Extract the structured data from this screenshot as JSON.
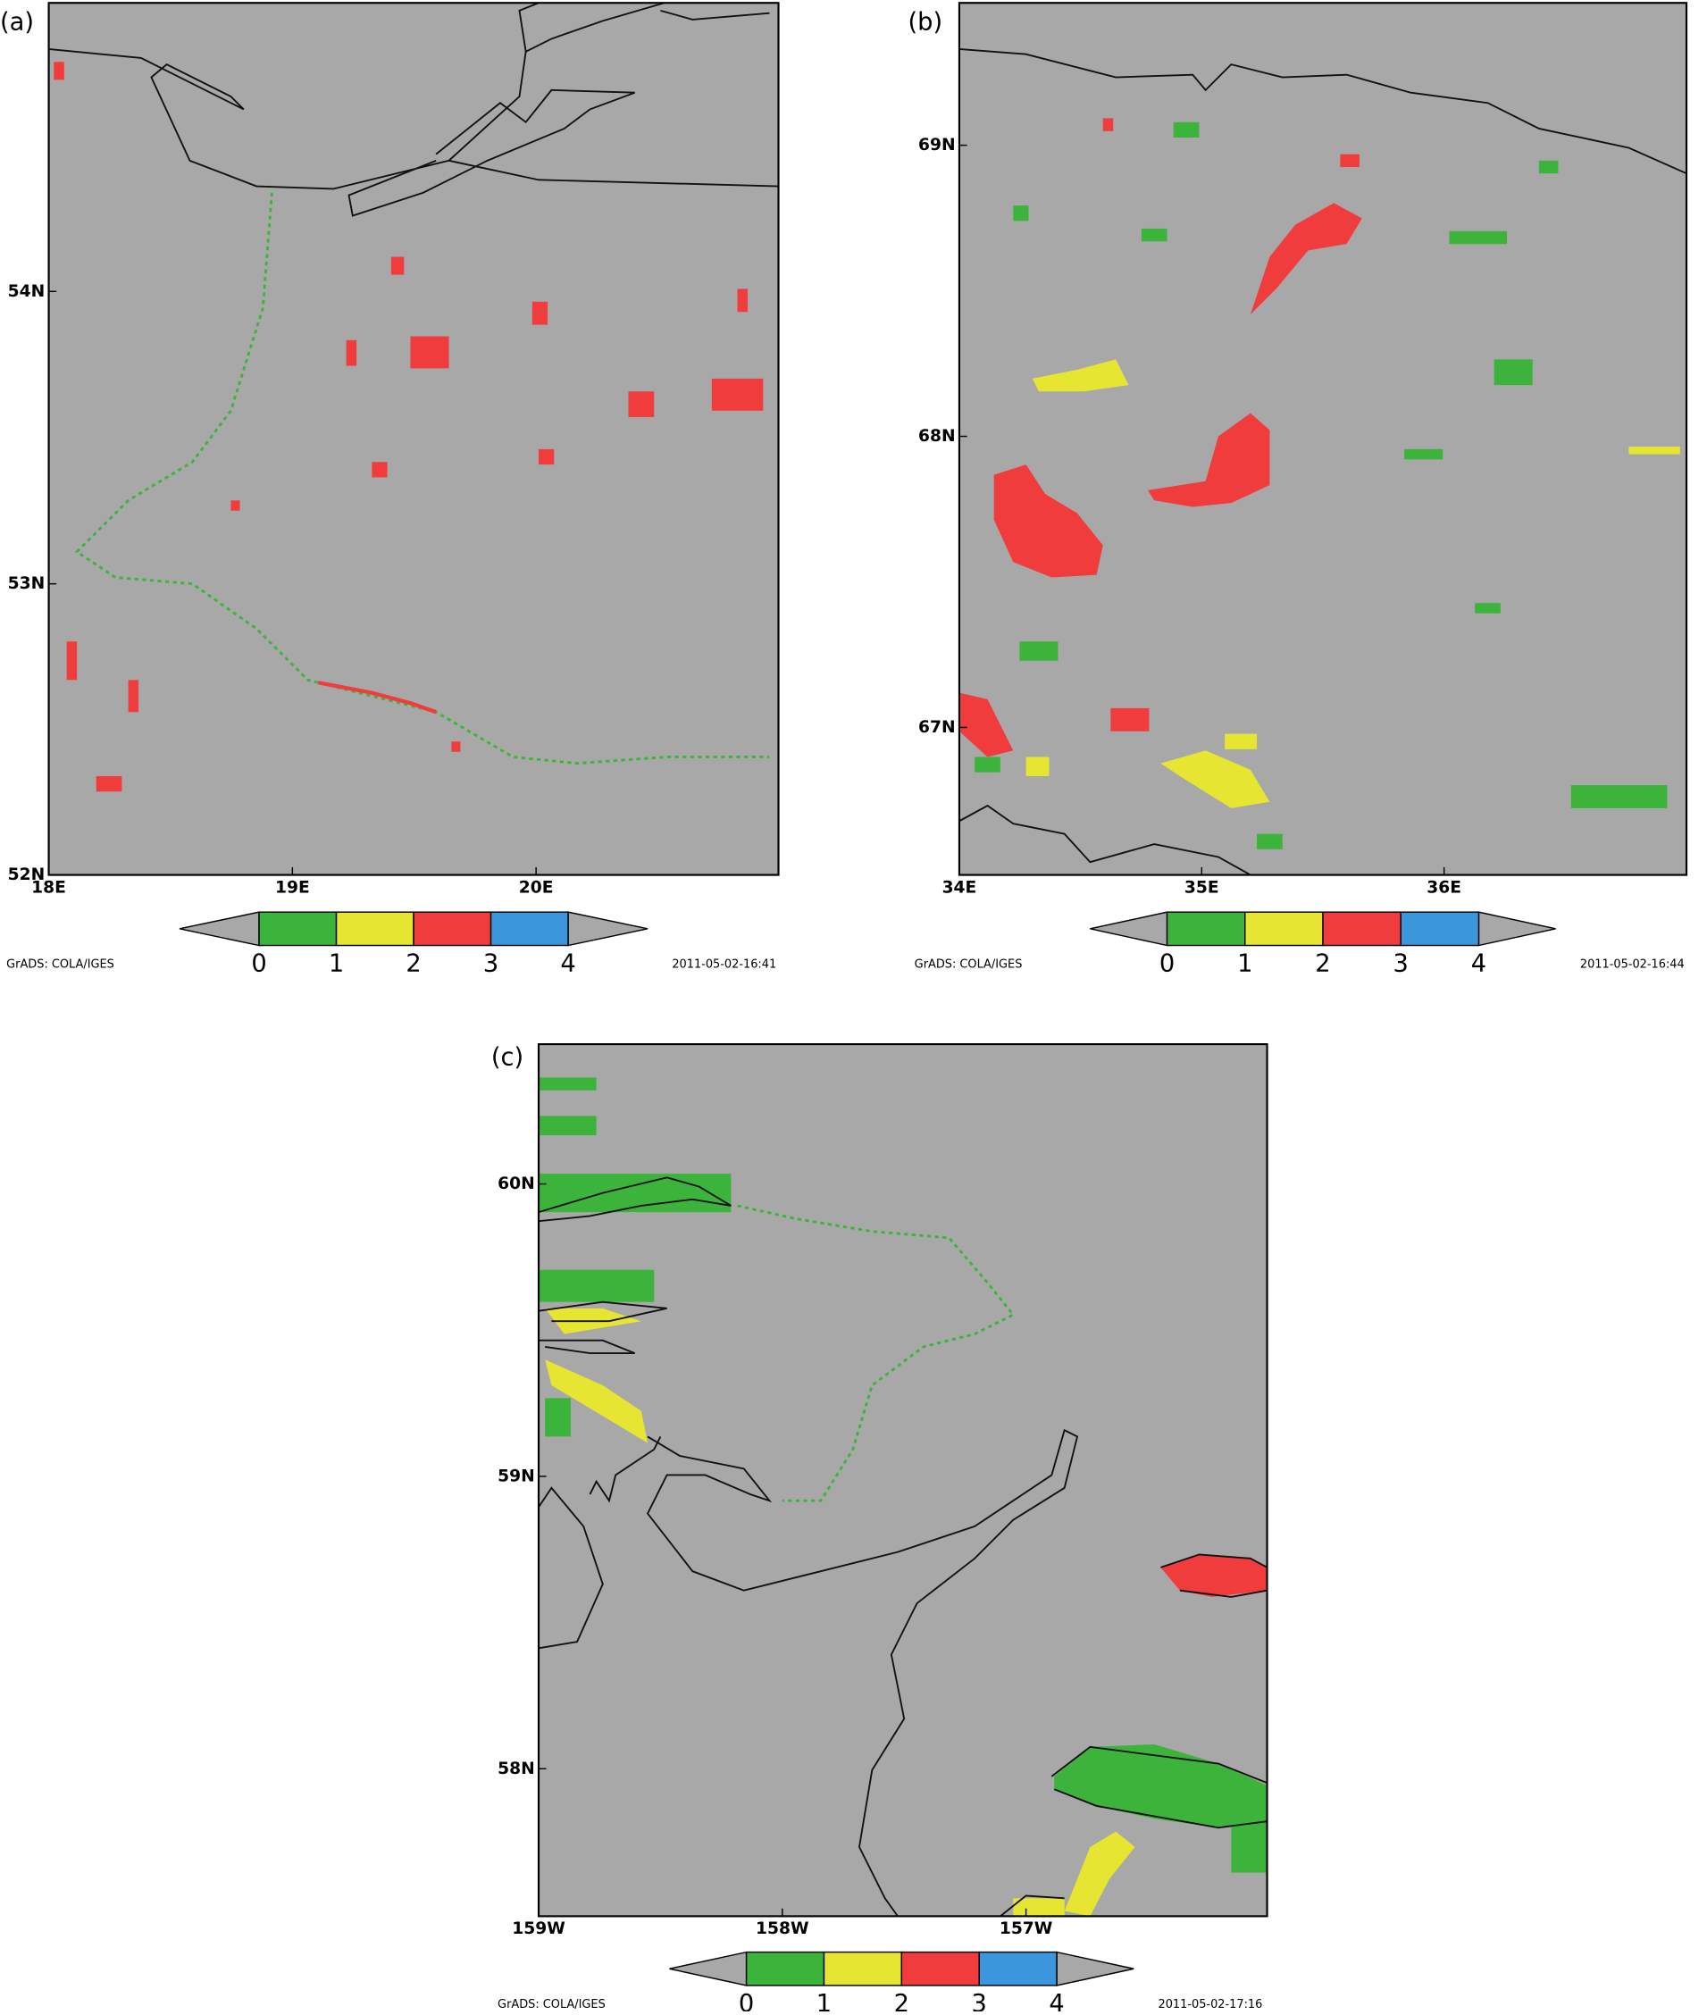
{
  "panels": [
    {
      "label": "(a)",
      "xticks": [
        "18E",
        "19E",
        "20E"
      ],
      "yticks": [
        "52N",
        "53N",
        "54N"
      ],
      "colorbar": {
        "labels": [
          "0",
          "1",
          "2",
          "3",
          "4"
        ],
        "colors": [
          "#3cb43c",
          "#e6e632",
          "#f03c3c",
          "#3c96dc"
        ],
        "end_color": "#a8a8a8"
      },
      "credit": "GrADS: COLA/IGES",
      "timestamp": "2011-05-02-16:41"
    },
    {
      "label": "(b)",
      "xticks": [
        "34E",
        "35E",
        "36E"
      ],
      "yticks": [
        "67N",
        "68N",
        "69N"
      ],
      "colorbar": {
        "labels": [
          "0",
          "1",
          "2",
          "3",
          "4"
        ],
        "colors": [
          "#3cb43c",
          "#e6e632",
          "#f03c3c",
          "#3c96dc"
        ],
        "end_color": "#a8a8a8"
      },
      "credit": "GrADS: COLA/IGES",
      "timestamp": "2011-05-02-16:44"
    },
    {
      "label": "(c)",
      "xticks": [
        "159W",
        "158W",
        "157W"
      ],
      "yticks": [
        "58N",
        "59N",
        "60N"
      ],
      "colorbar": {
        "labels": [
          "0",
          "1",
          "2",
          "3",
          "4"
        ],
        "colors": [
          "#3cb43c",
          "#e6e632",
          "#f03c3c",
          "#3c96dc"
        ],
        "end_color": "#a8a8a8"
      },
      "credit": "GrADS: COLA/IGES",
      "timestamp": "2011-05-02-17:16"
    }
  ]
}
